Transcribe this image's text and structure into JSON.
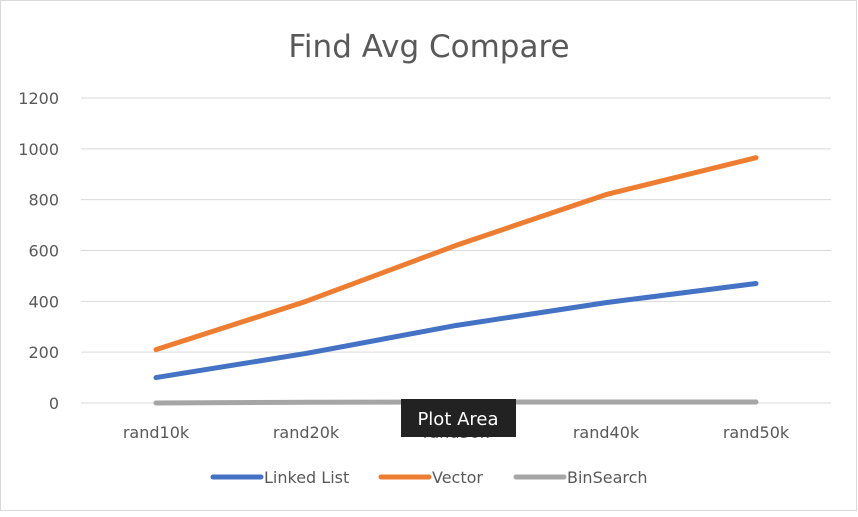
{
  "chart_data": {
    "type": "line",
    "title": "Find Avg Compare",
    "categories": [
      "rand10k",
      "rand20k",
      "rand30k",
      "rand40k",
      "rand50k"
    ],
    "ylim": [
      0,
      1200
    ],
    "yticks": [
      0,
      200,
      400,
      600,
      800,
      1000,
      1200
    ],
    "grid": true,
    "legend_position": "bottom",
    "series": [
      {
        "name": "Linked List",
        "color": "#4472C4",
        "values": [
          100,
          195,
          305,
          395,
          470
        ]
      },
      {
        "name": "Vector",
        "color": "#ED7D31",
        "values": [
          210,
          400,
          620,
          820,
          965
        ]
      },
      {
        "name": "BinSearch",
        "color": "#A5A5A5",
        "values": [
          0,
          3,
          4,
          4,
          4
        ]
      }
    ]
  },
  "tooltip": {
    "text": "Plot Area"
  }
}
